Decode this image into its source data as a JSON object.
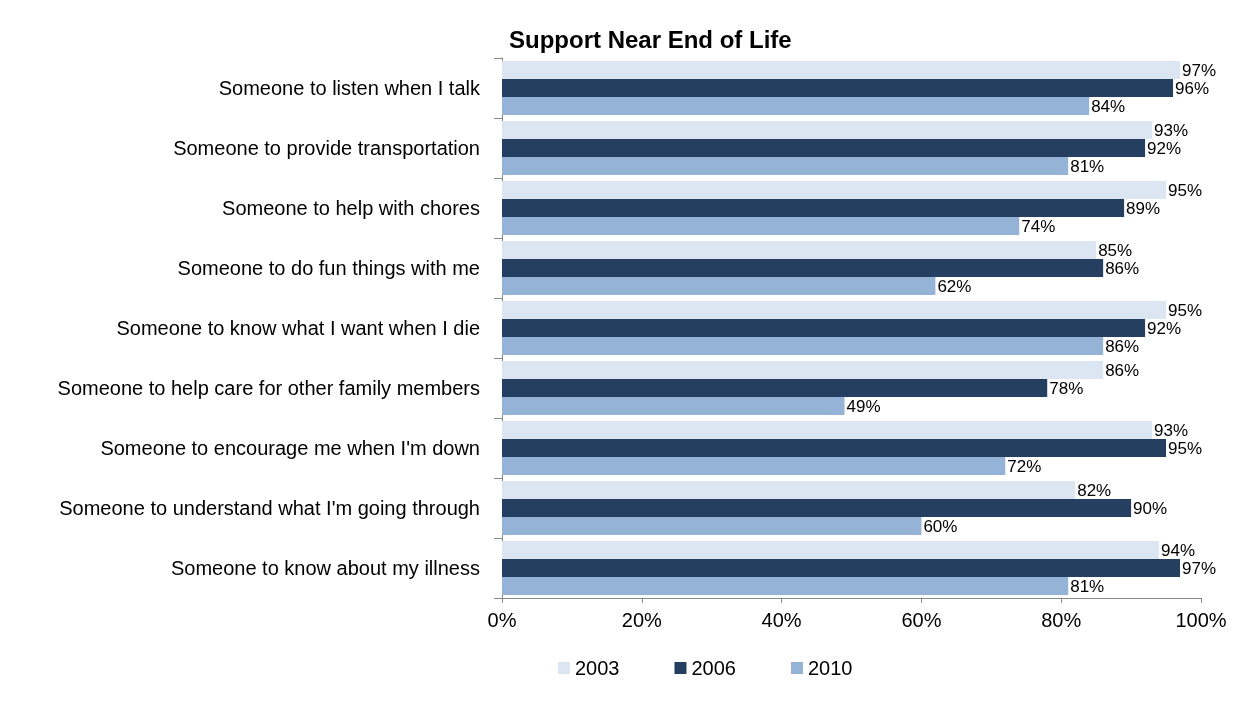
{
  "chart_data": {
    "type": "bar",
    "orientation": "horizontal",
    "title": "Support Near End of Life",
    "categories": [
      "Someone to listen when I talk",
      "Someone to provide transportation",
      "Someone to help with chores",
      "Someone to do fun things with me",
      "Someone to know what I want when I die",
      "Someone to help care for other family members",
      "Someone to encourage me when I'm down",
      "Someone to understand what I'm going through",
      "Someone to know about my illness"
    ],
    "series": [
      {
        "name": "2003",
        "color": "#dce6f2",
        "values": [
          97,
          93,
          95,
          85,
          95,
          86,
          93,
          82,
          94
        ],
        "value_labels": [
          "97%",
          "93%",
          "95%",
          "85%",
          "95%",
          "86%",
          "93%",
          "82%",
          "94%"
        ]
      },
      {
        "name": "2006",
        "color": "#243f60",
        "values": [
          96,
          92,
          89,
          86,
          92,
          78,
          95,
          90,
          97
        ],
        "value_labels": [
          "96%",
          "92%",
          "89%",
          "86%",
          "92%",
          "78%",
          "95%",
          "90%",
          "97%"
        ]
      },
      {
        "name": "2010",
        "color": "#95b3d7",
        "values": [
          84,
          81,
          74,
          62,
          86,
          49,
          72,
          60,
          81
        ],
        "value_labels": [
          "84%",
          "81%",
          "74%",
          "62%",
          "86%",
          "49%",
          "72%",
          "60%",
          "81%"
        ]
      }
    ],
    "xlim": [
      0,
      100
    ],
    "xticks": [
      {
        "value": 0,
        "label": "0%"
      },
      {
        "value": 20,
        "label": "20%"
      },
      {
        "value": 40,
        "label": "40%"
      },
      {
        "value": 60,
        "label": "60%"
      },
      {
        "value": 80,
        "label": "80%"
      },
      {
        "value": 100,
        "label": "100%"
      }
    ],
    "grid": false,
    "legend": "bottom"
  }
}
